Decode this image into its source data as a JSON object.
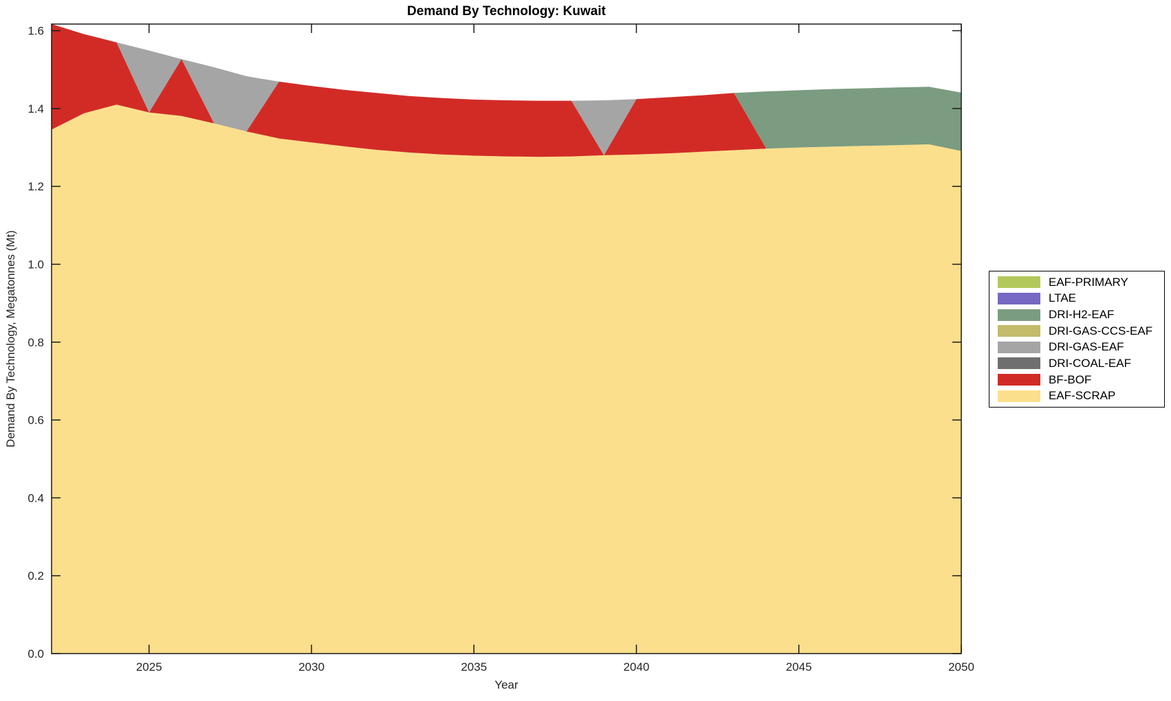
{
  "chart_data": {
    "type": "area",
    "stacked": true,
    "title": "Demand By Technology: Kuwait",
    "xlabel": "Year",
    "ylabel": "Demand By Technology, Megatonnes (Mt)",
    "xlim": [
      2022,
      2050
    ],
    "ylim": [
      0,
      1.617
    ],
    "xticks": [
      "2025",
      "2030",
      "2035",
      "2040",
      "2045",
      "2050"
    ],
    "yticks": [
      "0.0",
      "0.2",
      "0.4",
      "0.6",
      "0.8",
      "1.0",
      "1.2",
      "1.4",
      "1.6"
    ],
    "grid": false,
    "legend_position": "right-outside",
    "x": [
      2022,
      2023,
      2024,
      2025,
      2026,
      2027,
      2028,
      2029,
      2030,
      2031,
      2032,
      2033,
      2034,
      2035,
      2036,
      2037,
      2038,
      2039,
      2040,
      2041,
      2042,
      2043,
      2044,
      2045,
      2046,
      2047,
      2048,
      2049,
      2050
    ],
    "series": [
      {
        "name": "EAF-SCRAP",
        "color": "#FCDF8C",
        "values": [
          1.346,
          1.388,
          1.41,
          1.39,
          1.381,
          1.362,
          1.341,
          1.323,
          1.313,
          1.303,
          1.294,
          1.287,
          1.282,
          1.279,
          1.277,
          1.276,
          1.277,
          1.28,
          1.282,
          1.285,
          1.289,
          1.293,
          1.297,
          1.3,
          1.302,
          1.304,
          1.306,
          1.308,
          1.291
        ]
      },
      {
        "name": "BF-BOF",
        "color": "#D22B26",
        "values": [
          0.271,
          0.203,
          0.16,
          0,
          0.146,
          0,
          0,
          0.146,
          0.145,
          0.145,
          0.146,
          0.145,
          0.145,
          0.144,
          0.144,
          0.144,
          0.143,
          0,
          0.142,
          0.144,
          0.145,
          0.147,
          0,
          0,
          0,
          0,
          0,
          0,
          0
        ]
      },
      {
        "name": "DRI-COAL-EAF",
        "color": "#6F6F6F",
        "values": [
          0,
          0,
          0,
          0,
          0,
          0,
          0,
          0,
          0,
          0,
          0,
          0,
          0,
          0,
          0,
          0,
          0,
          0,
          0,
          0,
          0,
          0,
          0,
          0,
          0,
          0,
          0,
          0,
          0
        ]
      },
      {
        "name": "DRI-GAS-EAF",
        "color": "#A5A5A5",
        "values": [
          0,
          0,
          0,
          0.159,
          0,
          0.144,
          0.142,
          0,
          0,
          0,
          0,
          0,
          0,
          0,
          0,
          0,
          0,
          0.141,
          0,
          0,
          0,
          0,
          0,
          0,
          0,
          0,
          0,
          0,
          0
        ]
      },
      {
        "name": "DRI-GAS-CCS-EAF",
        "color": "#C3BA6B",
        "values": [
          0,
          0,
          0,
          0,
          0,
          0,
          0,
          0,
          0,
          0,
          0,
          0,
          0,
          0,
          0,
          0,
          0,
          0,
          0,
          0,
          0,
          0,
          0,
          0,
          0,
          0,
          0,
          0,
          0
        ]
      },
      {
        "name": "DRI-H2-EAF",
        "color": "#7B9C80",
        "values": [
          0,
          0,
          0,
          0,
          0,
          0,
          0,
          0,
          0,
          0,
          0,
          0,
          0,
          0,
          0,
          0,
          0,
          0,
          0,
          0,
          0,
          0,
          0.147,
          0.147,
          0.148,
          0.148,
          0.148,
          0.148,
          0.15
        ]
      },
      {
        "name": "LTAE",
        "color": "#7668C3",
        "values": [
          0,
          0,
          0,
          0,
          0,
          0,
          0,
          0,
          0,
          0,
          0,
          0,
          0,
          0,
          0,
          0,
          0,
          0,
          0,
          0,
          0,
          0,
          0,
          0,
          0,
          0,
          0,
          0,
          0
        ]
      },
      {
        "name": "EAF-PRIMARY",
        "color": "#B3C85B",
        "values": [
          0,
          0,
          0,
          0,
          0,
          0,
          0,
          0,
          0,
          0,
          0,
          0,
          0,
          0,
          0,
          0,
          0,
          0,
          0,
          0,
          0,
          0,
          0,
          0,
          0,
          0,
          0,
          0,
          0
        ]
      }
    ]
  },
  "axes": {
    "tick_color": "#1a1a1a",
    "label_color": "#262626"
  }
}
